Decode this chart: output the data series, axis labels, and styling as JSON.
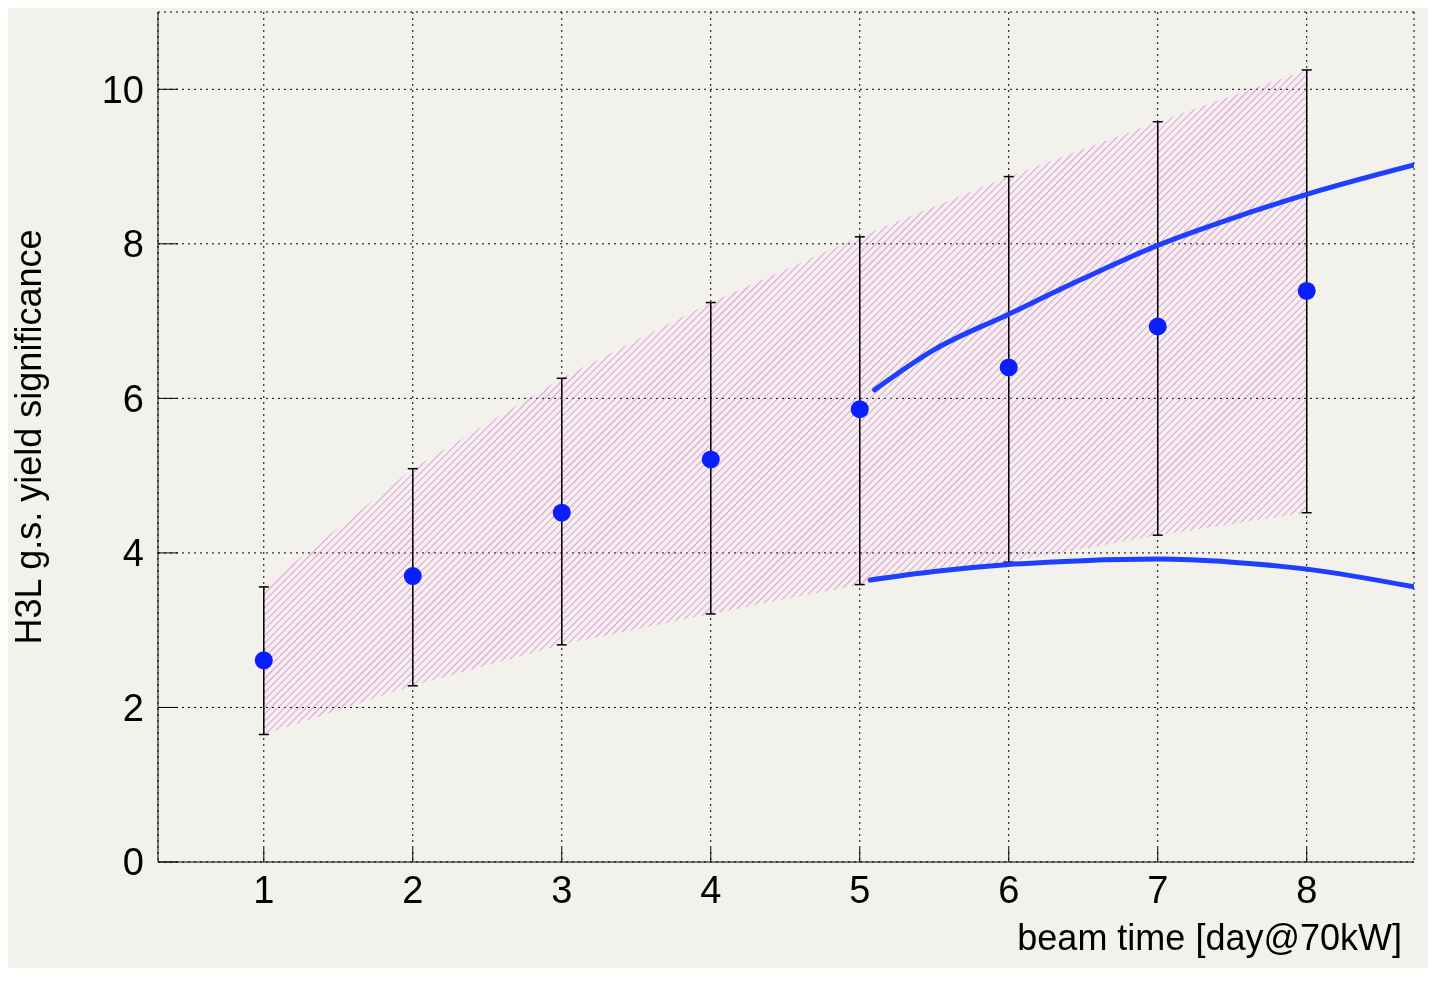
{
  "chart_data": {
    "type": "scatter",
    "xlabel": "beam time [day@70kW]",
    "ylabel": "H3L g.s. yield significance",
    "x": [
      1,
      2,
      3,
      4,
      5,
      6,
      7,
      8
    ],
    "xlim": [
      0.29,
      8.72
    ],
    "xticks": [
      1,
      2,
      3,
      4,
      5,
      6,
      7,
      8
    ],
    "ylim": [
      0,
      11
    ],
    "yticks": [
      0,
      2,
      4,
      6,
      8,
      10
    ],
    "grid": true,
    "series": [
      {
        "marker": "circle",
        "color": "#0a1eff",
        "values": [
          2.61,
          3.7,
          4.52,
          5.21,
          5.86,
          6.4,
          6.93,
          7.39
        ],
        "errors": [
          [
            1.65,
            3.56
          ],
          [
            2.28,
            5.09
          ],
          [
            2.81,
            6.26
          ],
          [
            3.21,
            7.24
          ],
          [
            3.59,
            8.09
          ],
          [
            3.88,
            8.87
          ],
          [
            4.23,
            9.58
          ],
          [
            4.52,
            10.25
          ]
        ],
        "lower": [
          1.65,
          2.28,
          2.81,
          3.21,
          3.59,
          3.88,
          4.23,
          4.52
        ],
        "upper": [
          3.56,
          5.09,
          6.26,
          7.24,
          8.09,
          8.87,
          9.58,
          10.25
        ]
      },
      {
        "type": "line",
        "marker": "none",
        "color": "#1f3fff",
        "x": [
          5.1,
          5.5,
          6,
          6.5,
          7,
          7.5,
          8,
          8.72
        ],
        "values": [
          6.11,
          6.63,
          7.09,
          7.55,
          7.98,
          8.33,
          8.64,
          9.02
        ]
      },
      {
        "type": "line",
        "marker": "none",
        "color": "#1f3fff",
        "x": [
          5.07,
          5.5,
          6,
          6.5,
          7,
          7.5,
          8,
          8.72
        ],
        "values": [
          3.65,
          3.76,
          3.85,
          3.9,
          3.92,
          3.88,
          3.79,
          3.56
        ]
      }
    ]
  }
}
